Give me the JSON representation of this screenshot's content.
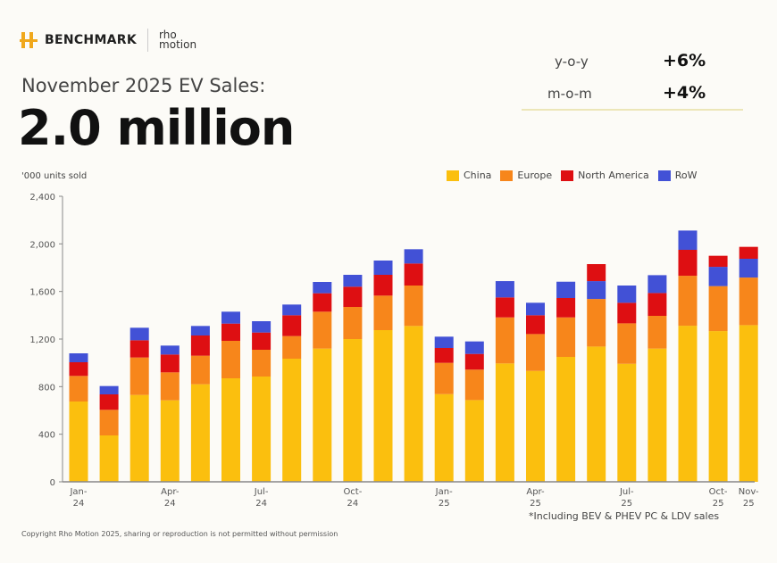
{
  "header": {
    "brand": "BENCHMARK",
    "partner_logo": "rho motion",
    "subtitle": "November 2025 EV Sales:",
    "headline": "2.0 million",
    "kpis": [
      {
        "label": "y-o-y",
        "value": "+6%"
      },
      {
        "label": "m-o-m",
        "value": "+4%"
      }
    ]
  },
  "footnote": "*Including BEV & PHEV PC & LDV sales",
  "copyright": "Copyright Rho Motion 2025, sharing or reproduction is not permitted without permission",
  "chart_data": {
    "type": "bar",
    "stacked": true,
    "ylabel": "'000 units sold",
    "ylim": [
      0,
      2400
    ],
    "yticks": [
      0,
      400,
      800,
      1200,
      1600,
      2000,
      2400
    ],
    "ytick_labels": [
      "0",
      "400",
      "800",
      "1,200",
      "1,600",
      "2,000",
      "2,400"
    ],
    "grid": false,
    "legend_position": "top-right",
    "categories": [
      "Jan-24",
      "Feb-24",
      "Mar-24",
      "Apr-24",
      "May-24",
      "Jun-24",
      "Jul-24",
      "Aug-24",
      "Sep-24",
      "Oct-24",
      "Nov-24",
      "Dec-24",
      "Jan-25",
      "Feb-25",
      "Mar-25",
      "Apr-25",
      "May-25",
      "Jun-25",
      "Jul-25",
      "Aug-25",
      "Sep-25",
      "Oct-25",
      "Nov-25"
    ],
    "xtick_labels": [
      {
        "category": "Jan-24",
        "line1": "Jan-",
        "line2": "24"
      },
      {
        "category": "Apr-24",
        "line1": "Apr-",
        "line2": "24"
      },
      {
        "category": "Jul-24",
        "line1": "Jul-",
        "line2": "24"
      },
      {
        "category": "Oct-24",
        "line1": "Oct-",
        "line2": "24"
      },
      {
        "category": "Jan-25",
        "line1": "Jan-",
        "line2": "25"
      },
      {
        "category": "Apr-25",
        "line1": "Apr-",
        "line2": "25"
      },
      {
        "category": "Jul-25",
        "line1": "Jul-",
        "line2": "25"
      },
      {
        "category": "Oct-25",
        "line1": "Oct-",
        "line2": "25"
      },
      {
        "category": "Nov-25",
        "line1": "Nov-",
        "line2": "25"
      }
    ],
    "series": [
      {
        "name": "China",
        "color": "#fbbf0e",
        "values": [
          675,
          390,
          730,
          685,
          820,
          870,
          885,
          1035,
          1120,
          1200,
          1275,
          1310,
          737,
          687,
          995,
          932,
          1050,
          1137,
          992,
          1120,
          1312,
          1267,
          1317
        ]
      },
      {
        "name": "Europe",
        "color": "#f7861b",
        "values": [
          215,
          215,
          315,
          235,
          240,
          315,
          225,
          190,
          310,
          270,
          290,
          340,
          263,
          256,
          387,
          310,
          332,
          400,
          340,
          275,
          420,
          378,
          400
        ]
      },
      {
        "name": "North America",
        "color": "#de0f12",
        "values": [
          115,
          130,
          145,
          150,
          170,
          145,
          145,
          175,
          155,
          170,
          175,
          185,
          125,
          132,
          168,
          158,
          163,
          143,
          173,
          192,
          218,
          93,
          100
        ]
      },
      {
        "name": "RoW",
        "color": "#4251d6",
        "values": [
          75,
          70,
          105,
          75,
          80,
          100,
          95,
          90,
          95,
          100,
          120,
          120,
          95,
          105,
          137,
          105,
          137,
          150,
          145,
          150,
          162,
          162,
          158
        ]
      }
    ]
  }
}
